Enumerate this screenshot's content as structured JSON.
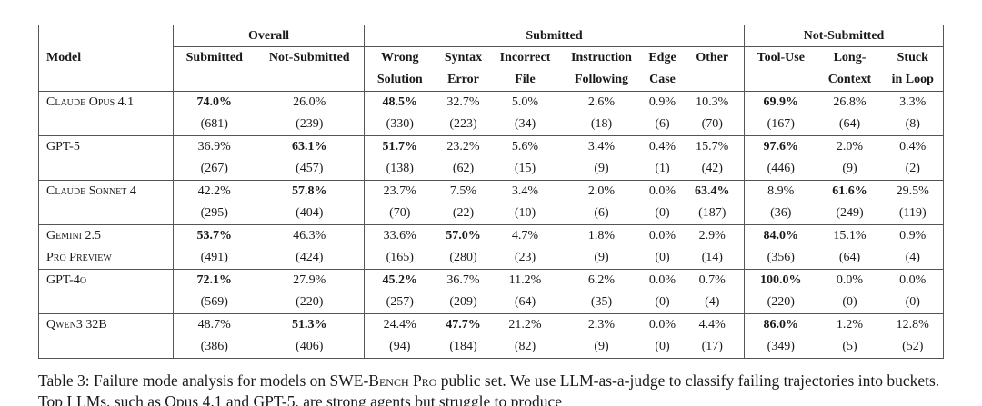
{
  "table": {
    "model_header": "Model",
    "groups": [
      {
        "label": "Overall",
        "columns": [
          [
            "Submitted"
          ],
          [
            "Not-Submitted"
          ]
        ]
      },
      {
        "label": "Submitted",
        "columns": [
          [
            "Wrong",
            "Solution"
          ],
          [
            "Syntax",
            "Error"
          ],
          [
            "Incorrect",
            "File"
          ],
          [
            "Instruction",
            "Following"
          ],
          [
            "Edge",
            "Case"
          ],
          [
            "Other"
          ]
        ]
      },
      {
        "label": "Not-Submitted",
        "columns": [
          [
            "Tool-Use"
          ],
          [
            "Long-",
            "Context"
          ],
          [
            "Stuck",
            "in Loop"
          ]
        ]
      }
    ],
    "rows": [
      {
        "model": [
          "Claude Opus 4.1"
        ],
        "bold": [
          0,
          2,
          8
        ],
        "cells": [
          [
            "74.0%",
            "(681)"
          ],
          [
            "26.0%",
            "(239)"
          ],
          [
            "48.5%",
            "(330)"
          ],
          [
            "32.7%",
            "(223)"
          ],
          [
            "5.0%",
            "(34)"
          ],
          [
            "2.6%",
            "(18)"
          ],
          [
            "0.9%",
            "(6)"
          ],
          [
            "10.3%",
            "(70)"
          ],
          [
            "69.9%",
            "(167)"
          ],
          [
            "26.8%",
            "(64)"
          ],
          [
            "3.3%",
            "(8)"
          ]
        ]
      },
      {
        "model": [
          "GPT-5"
        ],
        "bold": [
          1,
          2,
          8
        ],
        "cells": [
          [
            "36.9%",
            "(267)"
          ],
          [
            "63.1%",
            "(457)"
          ],
          [
            "51.7%",
            "(138)"
          ],
          [
            "23.2%",
            "(62)"
          ],
          [
            "5.6%",
            "(15)"
          ],
          [
            "3.4%",
            "(9)"
          ],
          [
            "0.4%",
            "(1)"
          ],
          [
            "15.7%",
            "(42)"
          ],
          [
            "97.6%",
            "(446)"
          ],
          [
            "2.0%",
            "(9)"
          ],
          [
            "0.4%",
            "(2)"
          ]
        ]
      },
      {
        "model": [
          "Claude Sonnet 4"
        ],
        "bold": [
          1,
          7,
          9
        ],
        "cells": [
          [
            "42.2%",
            "(295)"
          ],
          [
            "57.8%",
            "(404)"
          ],
          [
            "23.7%",
            "(70)"
          ],
          [
            "7.5%",
            "(22)"
          ],
          [
            "3.4%",
            "(10)"
          ],
          [
            "2.0%",
            "(6)"
          ],
          [
            "0.0%",
            "(0)"
          ],
          [
            "63.4%",
            "(187)"
          ],
          [
            "8.9%",
            "(36)"
          ],
          [
            "61.6%",
            "(249)"
          ],
          [
            "29.5%",
            "(119)"
          ]
        ]
      },
      {
        "model": [
          "Gemini 2.5",
          "Pro Preview"
        ],
        "bold": [
          0,
          3,
          8
        ],
        "cells": [
          [
            "53.7%",
            "(491)"
          ],
          [
            "46.3%",
            "(424)"
          ],
          [
            "33.6%",
            "(165)"
          ],
          [
            "57.0%",
            "(280)"
          ],
          [
            "4.7%",
            "(23)"
          ],
          [
            "1.8%",
            "(9)"
          ],
          [
            "0.0%",
            "(0)"
          ],
          [
            "2.9%",
            "(14)"
          ],
          [
            "84.0%",
            "(356)"
          ],
          [
            "15.1%",
            "(64)"
          ],
          [
            "0.9%",
            "(4)"
          ]
        ]
      },
      {
        "model": [
          "GPT-4o"
        ],
        "bold": [
          0,
          2,
          8
        ],
        "cells": [
          [
            "72.1%",
            "(569)"
          ],
          [
            "27.9%",
            "(220)"
          ],
          [
            "45.2%",
            "(257)"
          ],
          [
            "36.7%",
            "(209)"
          ],
          [
            "11.2%",
            "(64)"
          ],
          [
            "6.2%",
            "(35)"
          ],
          [
            "0.0%",
            "(0)"
          ],
          [
            "0.7%",
            "(4)"
          ],
          [
            "100.0%",
            "(220)"
          ],
          [
            "0.0%",
            "(0)"
          ],
          [
            "0.0%",
            "(0)"
          ]
        ]
      },
      {
        "model": [
          "Qwen3 32B"
        ],
        "bold": [
          1,
          3,
          8
        ],
        "cells": [
          [
            "48.7%",
            "(386)"
          ],
          [
            "51.3%",
            "(406)"
          ],
          [
            "24.4%",
            "(94)"
          ],
          [
            "47.7%",
            "(184)"
          ],
          [
            "21.2%",
            "(82)"
          ],
          [
            "2.3%",
            "(9)"
          ],
          [
            "0.0%",
            "(0)"
          ],
          [
            "4.4%",
            "(17)"
          ],
          [
            "86.0%",
            "(349)"
          ],
          [
            "1.2%",
            "(5)"
          ],
          [
            "12.8%",
            "(52)"
          ]
        ]
      }
    ]
  },
  "caption": {
    "before": "Table 3: Failure mode analysis for models on ",
    "smallcaps": "SWE-Bench Pro",
    "after": " public set. We use LLM-as-a-judge to classify failing trajectories into buckets. Top LLMs, such as Opus 4.1 and GPT-5, are strong agents but struggle to produce"
  }
}
